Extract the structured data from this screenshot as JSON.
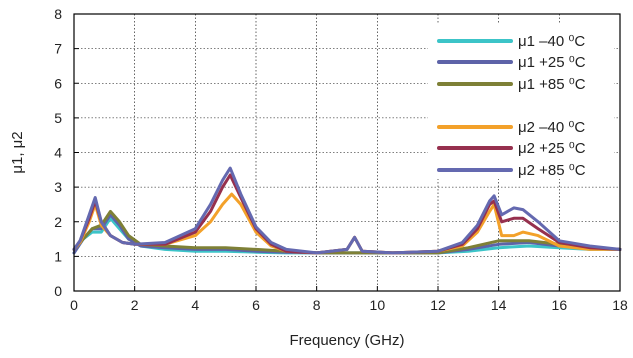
{
  "chart_data": {
    "type": "line",
    "xlabel": "Frequency (GHz)",
    "ylabel": "μ1, μ2",
    "xlim": [
      0,
      18
    ],
    "ylim": [
      0,
      8
    ],
    "x_ticks": [
      0,
      2,
      4,
      6,
      8,
      10,
      12,
      14,
      16,
      18
    ],
    "y_ticks": [
      0,
      1,
      2,
      3,
      4,
      5,
      6,
      7,
      8
    ],
    "grid": true,
    "legend_position": "top-right",
    "series": [
      {
        "name": "μ1 –40 ⁰C",
        "color": "#3cc4c8",
        "x": [
          0.0,
          0.3,
          0.6,
          0.9,
          1.2,
          1.5,
          1.8,
          2.2,
          3,
          4,
          5,
          6,
          7,
          8,
          9,
          10,
          11,
          12,
          13,
          14,
          15,
          16,
          17,
          18
        ],
        "y": [
          1.1,
          1.5,
          1.7,
          1.7,
          2.1,
          1.8,
          1.5,
          1.3,
          1.2,
          1.15,
          1.15,
          1.12,
          1.1,
          1.1,
          1.1,
          1.1,
          1.1,
          1.1,
          1.15,
          1.25,
          1.3,
          1.25,
          1.2,
          1.2
        ]
      },
      {
        "name": "μ1 +25 ⁰C",
        "color": "#5d63a8",
        "x": [
          0.0,
          0.3,
          0.6,
          0.9,
          1.2,
          1.5,
          1.8,
          2.2,
          3,
          4,
          5,
          6,
          7,
          8,
          9,
          10,
          11,
          12,
          13,
          14,
          15,
          16,
          17,
          18
        ],
        "y": [
          1.1,
          1.5,
          1.8,
          1.8,
          2.2,
          1.9,
          1.5,
          1.3,
          1.25,
          1.2,
          1.2,
          1.15,
          1.12,
          1.1,
          1.1,
          1.1,
          1.1,
          1.1,
          1.2,
          1.35,
          1.4,
          1.3,
          1.25,
          1.2
        ]
      },
      {
        "name": "μ1 +85 ⁰C",
        "color": "#7e8036",
        "x": [
          0.0,
          0.3,
          0.6,
          0.9,
          1.2,
          1.5,
          1.8,
          2.2,
          3,
          4,
          5,
          6,
          7,
          8,
          9,
          10,
          11,
          12,
          13,
          14,
          15,
          16,
          17,
          18
        ],
        "y": [
          1.2,
          1.5,
          1.8,
          1.9,
          2.3,
          2.0,
          1.6,
          1.35,
          1.3,
          1.25,
          1.25,
          1.2,
          1.15,
          1.1,
          1.1,
          1.1,
          1.1,
          1.1,
          1.25,
          1.45,
          1.45,
          1.35,
          1.25,
          1.2
        ]
      },
      {
        "name": "μ2 –40 ⁰C",
        "color": "#f3a12a",
        "x": [
          0.0,
          0.2,
          0.5,
          0.7,
          0.9,
          1.2,
          1.6,
          2.0,
          3.0,
          4.0,
          4.5,
          4.9,
          5.2,
          5.5,
          6.0,
          6.5,
          7.0,
          8.0,
          9.0,
          9.25,
          9.5,
          10.5,
          12,
          12.8,
          13.3,
          13.7,
          13.85,
          14.1,
          14.5,
          14.8,
          15.3,
          16,
          17,
          18
        ],
        "y": [
          1.2,
          1.4,
          2.0,
          2.5,
          1.9,
          1.6,
          1.4,
          1.35,
          1.35,
          1.6,
          2.0,
          2.5,
          2.8,
          2.5,
          1.7,
          1.3,
          1.15,
          1.1,
          1.2,
          1.55,
          1.15,
          1.1,
          1.15,
          1.3,
          1.7,
          2.3,
          2.5,
          1.6,
          1.6,
          1.7,
          1.6,
          1.3,
          1.2,
          1.2
        ]
      },
      {
        "name": "μ2 +25 ⁰C",
        "color": "#96304e",
        "x": [
          0.0,
          0.2,
          0.5,
          0.7,
          0.9,
          1.2,
          1.6,
          2.0,
          3.0,
          4.0,
          4.5,
          4.9,
          5.15,
          5.5,
          6.0,
          6.5,
          7.0,
          8.0,
          9.0,
          9.25,
          9.5,
          10.5,
          12,
          12.8,
          13.3,
          13.7,
          13.85,
          14.1,
          14.5,
          14.8,
          15.3,
          16,
          17,
          18
        ],
        "y": [
          1.2,
          1.45,
          2.1,
          2.6,
          2.0,
          1.6,
          1.4,
          1.35,
          1.35,
          1.7,
          2.3,
          3.0,
          3.35,
          2.7,
          1.8,
          1.35,
          1.15,
          1.1,
          1.2,
          1.55,
          1.15,
          1.1,
          1.15,
          1.35,
          1.8,
          2.5,
          2.6,
          2.0,
          2.1,
          2.1,
          1.8,
          1.4,
          1.25,
          1.2
        ]
      },
      {
        "name": "μ2 +85 ⁰C",
        "color": "#6469b0",
        "x": [
          0.0,
          0.2,
          0.5,
          0.7,
          0.9,
          1.2,
          1.6,
          2.0,
          3.0,
          4.0,
          4.5,
          4.9,
          5.15,
          5.5,
          6.0,
          6.5,
          7.0,
          8.0,
          9.0,
          9.25,
          9.5,
          10.5,
          12,
          12.8,
          13.3,
          13.7,
          13.85,
          14.1,
          14.5,
          14.8,
          15.3,
          16,
          17,
          18
        ],
        "y": [
          1.2,
          1.45,
          2.2,
          2.7,
          2.0,
          1.6,
          1.4,
          1.35,
          1.4,
          1.8,
          2.5,
          3.2,
          3.55,
          2.8,
          1.85,
          1.4,
          1.2,
          1.1,
          1.2,
          1.55,
          1.15,
          1.1,
          1.15,
          1.4,
          1.9,
          2.6,
          2.75,
          2.2,
          2.4,
          2.35,
          2.0,
          1.45,
          1.3,
          1.2
        ]
      }
    ]
  }
}
